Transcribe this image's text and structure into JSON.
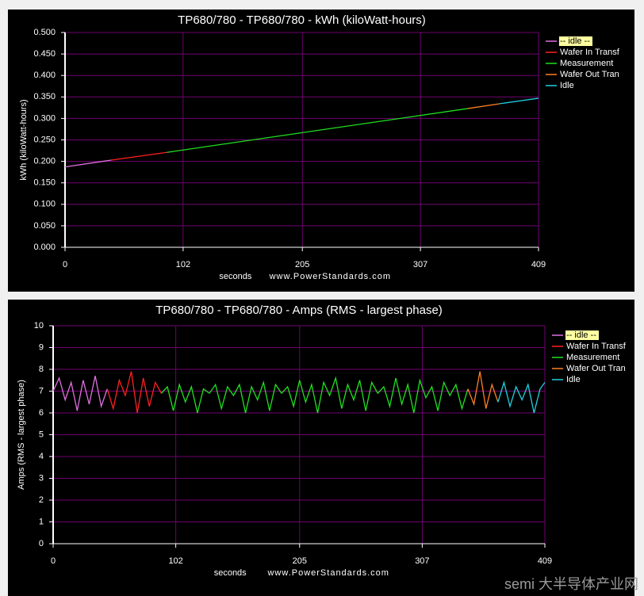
{
  "chart_data": [
    {
      "type": "line",
      "title": "TP680/780 - TP680/780 - kWh (kiloWatt-hours)",
      "y_label": "kWh (kiloWatt-hours)",
      "x_label": "seconds",
      "annotation": "www.PowerStandards.com",
      "xlim": [
        0,
        409
      ],
      "xticks": [
        0,
        102,
        205,
        307,
        409
      ],
      "ylim": [
        0,
        0.5
      ],
      "yticks": [
        {
          "value": 0,
          "label": "0.000"
        },
        {
          "value": 0.05,
          "label": "0.050"
        },
        {
          "value": 0.1,
          "label": "0.100"
        },
        {
          "value": 0.15,
          "label": "0.150"
        },
        {
          "value": 0.2,
          "label": "0.200"
        },
        {
          "value": 0.25,
          "label": "0.250"
        },
        {
          "value": 0.3,
          "label": "0.300"
        },
        {
          "value": 0.35,
          "label": "0.350"
        },
        {
          "value": 0.4,
          "label": "0.400"
        },
        {
          "value": 0.45,
          "label": "0.450"
        },
        {
          "value": 0.5,
          "label": "0.500"
        }
      ],
      "grid": true,
      "legend": "right",
      "series": [
        {
          "name": "-- idle --",
          "color": "#e070e0",
          "x": [
            0,
            40
          ],
          "values": [
            0.187,
            0.203
          ]
        },
        {
          "name": "Wafer In Transf",
          "color": "#ff2020",
          "x": [
            40,
            88
          ],
          "values": [
            0.203,
            0.221
          ]
        },
        {
          "name": "Measurement",
          "color": "#20e020",
          "x": [
            88,
            348
          ],
          "values": [
            0.221,
            0.323
          ]
        },
        {
          "name": "Wafer Out Tran",
          "color": "#ff8020",
          "x": [
            348,
            375
          ],
          "values": [
            0.323,
            0.334
          ]
        },
        {
          "name": "Idle",
          "color": "#20d0e0",
          "x": [
            375,
            409
          ],
          "values": [
            0.334,
            0.347
          ]
        }
      ]
    },
    {
      "type": "line",
      "title": "TP680/780 - TP680/780 - Amps (RMS - largest phase)",
      "y_label": "Amps (RMS - largest phase)",
      "x_label": "seconds",
      "annotation": "www.PowerStandards.com",
      "xlim": [
        0,
        409
      ],
      "xticks": [
        0,
        102,
        205,
        307,
        409
      ],
      "ylim": [
        0,
        10
      ],
      "yticks": [
        0,
        1,
        2,
        3,
        4,
        5,
        6,
        7,
        8,
        9,
        10
      ],
      "grid": true,
      "legend": "right",
      "series": [
        {
          "name": "-- idle --",
          "color": "#e070e0",
          "x": [
            0,
            5,
            10,
            15,
            20,
            25,
            30,
            35,
            40,
            45
          ],
          "values": [
            7.0,
            7.6,
            6.6,
            7.4,
            6.1,
            7.5,
            6.4,
            7.7,
            6.3,
            7.1
          ]
        },
        {
          "name": "Wafer In Transf",
          "color": "#ff2020",
          "x": [
            45,
            50,
            55,
            60,
            65,
            70,
            75,
            80,
            85,
            90
          ],
          "values": [
            7.1,
            6.2,
            7.5,
            6.8,
            7.9,
            6.0,
            7.6,
            6.3,
            7.4,
            6.9
          ]
        },
        {
          "name": "Measurement",
          "color": "#20e020",
          "x": [
            90,
            95,
            100,
            105,
            110,
            115,
            120,
            125,
            130,
            135,
            140,
            145,
            150,
            155,
            160,
            165,
            170,
            175,
            180,
            185,
            190,
            195,
            200,
            205,
            210,
            215,
            220,
            225,
            230,
            235,
            240,
            245,
            250,
            255,
            260,
            265,
            270,
            275,
            280,
            285,
            290,
            295,
            300,
            305,
            310,
            315,
            320,
            325,
            330,
            335,
            340,
            345
          ],
          "values": [
            6.9,
            7.2,
            6.1,
            7.3,
            6.5,
            7.2,
            6.0,
            7.1,
            6.9,
            7.3,
            6.2,
            7.2,
            6.8,
            7.3,
            6.0,
            7.2,
            6.6,
            7.4,
            6.1,
            7.3,
            6.9,
            7.2,
            6.3,
            7.5,
            6.5,
            7.3,
            6.0,
            7.4,
            6.8,
            7.6,
            6.2,
            7.3,
            6.6,
            7.5,
            6.1,
            7.4,
            6.9,
            7.2,
            6.3,
            7.6,
            6.4,
            7.3,
            6.0,
            7.5,
            6.7,
            7.2,
            6.1,
            7.4,
            6.8,
            7.3,
            6.2,
            7.1
          ]
        },
        {
          "name": "Wafer Out Tran",
          "color": "#ff8020",
          "x": [
            345,
            350,
            355,
            360,
            365,
            370
          ],
          "values": [
            7.1,
            6.4,
            7.9,
            6.2,
            7.3,
            6.5
          ]
        },
        {
          "name": "Idle",
          "color": "#20d0e0",
          "x": [
            370,
            375,
            380,
            385,
            390,
            395,
            400,
            405,
            409
          ],
          "values": [
            6.5,
            7.4,
            6.3,
            7.2,
            6.6,
            7.3,
            6.0,
            7.1,
            7.4
          ]
        }
      ]
    }
  ],
  "watermark": "semi 大半导体产业网"
}
